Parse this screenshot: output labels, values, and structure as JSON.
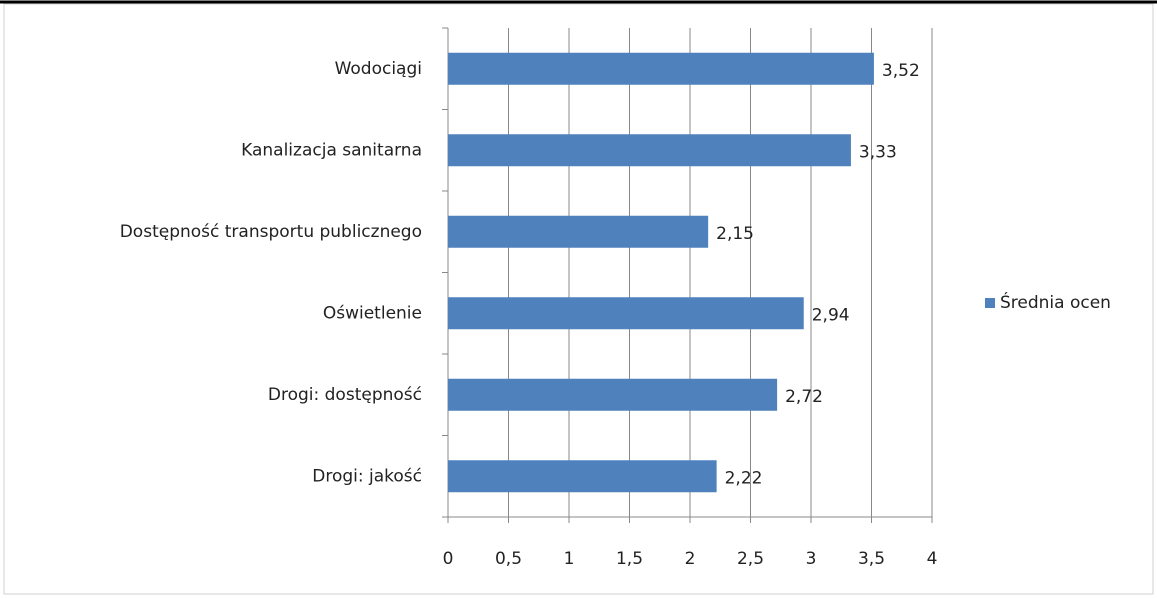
{
  "chart_data": {
    "type": "hbar",
    "categories": [
      "Wodociągi",
      "Kanalizacja sanitarna",
      "Dostępność transportu publicznego",
      "Oświetlenie",
      "Drogi: dostępność",
      "Drogi: jakość"
    ],
    "series": [
      {
        "name": "Średnia ocen",
        "color": "#4f81bd",
        "values": [
          3.52,
          3.33,
          2.15,
          2.94,
          2.72,
          2.22
        ],
        "value_labels": [
          "3,52",
          "3,33",
          "2,15",
          "2,94",
          "2,72",
          "2,22"
        ]
      }
    ],
    "xlim": [
      0,
      4
    ],
    "xticks": [
      0,
      {
        "value": 0.5,
        "label": "0,5"
      },
      1,
      {
        "value": 1.5,
        "label": "1,5"
      },
      2,
      {
        "value": 2.5,
        "label": "2,5"
      },
      3,
      {
        "value": 3.5,
        "label": "3,5"
      },
      4
    ],
    "grid": true,
    "legend": "right"
  }
}
